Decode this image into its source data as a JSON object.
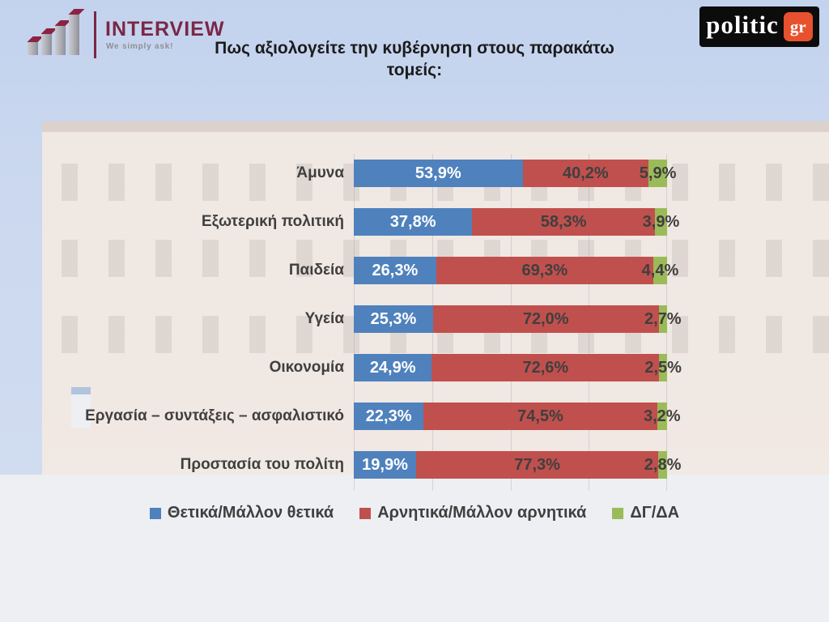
{
  "header": {
    "title": "Πως αξιολογείτε την κυβέρνηση στους παρακάτω τομείς:",
    "interview_logo": {
      "name": "INTERVIEW",
      "tagline": "We simply ask!"
    },
    "politic_logo": {
      "main": "politic",
      "suffix": "gr",
      "box_color": "#e8512e",
      "bg_color": "#0c0c0c"
    }
  },
  "chart_data": {
    "type": "bar",
    "orientation": "horizontal-stacked",
    "title": "Πως αξιολογείτε την κυβέρνηση στους παρακάτω τομείς:",
    "categories": [
      "Άμυνα",
      "Εξωτερική πολιτική",
      "Παιδεία",
      "Υγεία",
      "Οικονομία",
      "Εργασία – συντάξεις – ασφαλιστικό",
      "Προστασία του πολίτη"
    ],
    "series": [
      {
        "name": "Θετικά/Μάλλον θετικά",
        "color": "#4f81bd",
        "values": [
          53.9,
          37.8,
          26.3,
          25.3,
          24.9,
          22.3,
          19.9
        ]
      },
      {
        "name": "Αρνητικά/Μάλλον αρνητικά",
        "color": "#c0504d",
        "values": [
          40.2,
          58.3,
          69.3,
          72.0,
          72.6,
          74.5,
          77.3
        ]
      },
      {
        "name": "ΔΓ/ΔΑ",
        "color": "#9bbb59",
        "values": [
          5.9,
          3.9,
          4.4,
          2.7,
          2.5,
          3.2,
          2.8
        ]
      }
    ],
    "value_labels": [
      [
        "53,9%",
        "40,2%",
        "5,9%"
      ],
      [
        "37,8%",
        "58,3%",
        "3,9%"
      ],
      [
        "26,3%",
        "69,3%",
        "4,4%"
      ],
      [
        "25,3%",
        "72,0%",
        "2,7%"
      ],
      [
        "24,9%",
        "72,6%",
        "2,5%"
      ],
      [
        "22,3%",
        "74,5%",
        "3,2%"
      ],
      [
        "19,9%",
        "77,3%",
        "2,8%"
      ]
    ],
    "xlim": [
      0,
      100
    ],
    "grid": true,
    "legend_position": "bottom"
  }
}
